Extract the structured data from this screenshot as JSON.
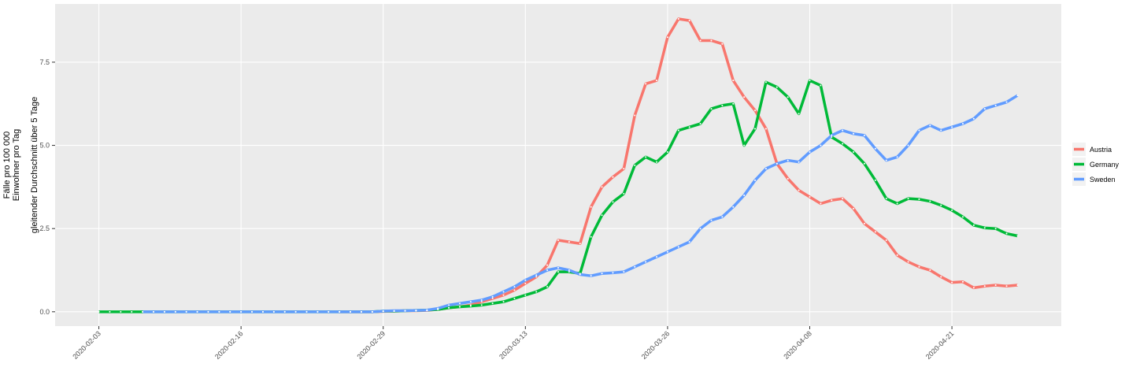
{
  "chart_data": {
    "type": "line",
    "y_label": [
      "Fälle pro 100 000",
      "Einwohner pro Tag",
      "gleitender Durchschnitt über 5 Tage"
    ],
    "x": [
      "2020-02-03",
      "2020-02-04",
      "2020-02-05",
      "2020-02-06",
      "2020-02-07",
      "2020-02-08",
      "2020-02-09",
      "2020-02-10",
      "2020-02-11",
      "2020-02-12",
      "2020-02-13",
      "2020-02-14",
      "2020-02-15",
      "2020-02-16",
      "2020-02-17",
      "2020-02-18",
      "2020-02-19",
      "2020-02-20",
      "2020-02-21",
      "2020-02-22",
      "2020-02-23",
      "2020-02-24",
      "2020-02-25",
      "2020-02-26",
      "2020-02-27",
      "2020-02-28",
      "2020-02-29",
      "2020-03-01",
      "2020-03-02",
      "2020-03-03",
      "2020-03-04",
      "2020-03-05",
      "2020-03-06",
      "2020-03-07",
      "2020-03-08",
      "2020-03-09",
      "2020-03-10",
      "2020-03-11",
      "2020-03-12",
      "2020-03-13",
      "2020-03-14",
      "2020-03-15",
      "2020-03-16",
      "2020-03-17",
      "2020-03-18",
      "2020-03-19",
      "2020-03-20",
      "2020-03-21",
      "2020-03-22",
      "2020-03-23",
      "2020-03-24",
      "2020-03-25",
      "2020-03-26",
      "2020-03-27",
      "2020-03-28",
      "2020-03-29",
      "2020-03-30",
      "2020-03-31",
      "2020-04-01",
      "2020-04-02",
      "2020-04-03",
      "2020-04-04",
      "2020-04-05",
      "2020-04-06",
      "2020-04-07",
      "2020-04-08",
      "2020-04-09",
      "2020-04-10",
      "2020-04-11",
      "2020-04-12",
      "2020-04-13",
      "2020-04-14",
      "2020-04-15",
      "2020-04-16",
      "2020-04-17",
      "2020-04-18",
      "2020-04-19",
      "2020-04-20",
      "2020-04-21",
      "2020-04-22",
      "2020-04-23",
      "2020-04-24",
      "2020-04-25",
      "2020-04-26",
      "2020-04-27"
    ],
    "series": [
      {
        "name": "Austria",
        "color": "#F8766D",
        "values": [
          null,
          null,
          null,
          null,
          null,
          null,
          null,
          null,
          null,
          null,
          null,
          null,
          null,
          null,
          null,
          null,
          null,
          null,
          null,
          null,
          null,
          null,
          0,
          0,
          0,
          0,
          0.01,
          0.02,
          0.03,
          0.03,
          0.04,
          0.07,
          0.12,
          0.15,
          0.2,
          0.3,
          0.4,
          0.5,
          0.65,
          0.85,
          1.05,
          1.4,
          2.15,
          2.1,
          2.05,
          3.15,
          3.75,
          4.05,
          4.3,
          5.9,
          6.85,
          6.95,
          8.25,
          8.8,
          8.75,
          8.15,
          8.15,
          8.05,
          6.95,
          6.45,
          6.05,
          5.5,
          4.45,
          4.0,
          3.65,
          3.45,
          3.25,
          3.35,
          3.4,
          3.1,
          2.65,
          2.4,
          2.15,
          1.7,
          1.5,
          1.35,
          1.25,
          1.05,
          0.88,
          0.9,
          0.72,
          0.77,
          0.8,
          0.77,
          0.8
        ]
      },
      {
        "name": "Germany",
        "color": "#00BA38",
        "values": [
          0,
          0,
          0,
          0,
          0,
          0,
          0,
          0,
          0,
          0,
          0,
          0,
          0,
          0,
          0,
          0,
          0,
          0,
          0,
          0,
          0,
          0,
          0,
          0,
          0,
          0,
          0.02,
          0.02,
          0.03,
          0.04,
          0.05,
          0.07,
          0.12,
          0.15,
          0.17,
          0.2,
          0.25,
          0.3,
          0.4,
          0.5,
          0.6,
          0.75,
          1.2,
          1.2,
          1.15,
          2.25,
          2.9,
          3.3,
          3.55,
          4.4,
          4.65,
          4.5,
          4.8,
          5.45,
          5.55,
          5.65,
          6.1,
          6.2,
          6.25,
          5.0,
          5.5,
          6.9,
          6.75,
          6.45,
          5.95,
          6.95,
          6.8,
          5.25,
          5.05,
          4.8,
          4.45,
          3.95,
          3.4,
          3.25,
          3.4,
          3.38,
          3.32,
          3.2,
          3.05,
          2.85,
          2.6,
          2.52,
          2.5,
          2.35,
          2.28
        ]
      },
      {
        "name": "Sweden",
        "color": "#619CFF",
        "values": [
          null,
          null,
          null,
          null,
          0,
          0,
          0,
          0,
          0,
          0,
          0,
          0,
          0,
          0,
          0,
          0,
          0,
          0,
          0,
          0,
          0,
          0,
          0,
          0,
          0,
          0,
          0.02,
          0.03,
          0.03,
          0.04,
          0.05,
          0.1,
          0.2,
          0.25,
          0.3,
          0.35,
          0.45,
          0.6,
          0.75,
          0.95,
          1.1,
          1.25,
          1.32,
          1.25,
          1.12,
          1.08,
          1.15,
          1.17,
          1.2,
          1.35,
          1.5,
          1.65,
          1.8,
          1.95,
          2.1,
          2.5,
          2.75,
          2.85,
          3.15,
          3.5,
          3.95,
          4.3,
          4.45,
          4.55,
          4.5,
          4.8,
          5.0,
          5.3,
          5.45,
          5.35,
          5.3,
          4.9,
          4.55,
          4.65,
          5.0,
          5.45,
          5.6,
          5.45,
          5.55,
          5.65,
          5.8,
          6.1,
          6.2,
          6.3,
          6.5
        ]
      }
    ],
    "xlim": [
      "2020-01-30",
      "2020-05-01"
    ],
    "xticks": [
      "2020-02-03",
      "2020-02-16",
      "2020-02-29",
      "2020-03-13",
      "2020-03-26",
      "2020-04-08",
      "2020-04-21"
    ],
    "ylim": [
      -0.43,
      9.25
    ],
    "yticks": [
      {
        "value": 0,
        "label": "0.0"
      },
      2.5,
      {
        "value": 5,
        "label": "5.0"
      },
      7.5
    ],
    "grid": true,
    "legend": "right"
  }
}
